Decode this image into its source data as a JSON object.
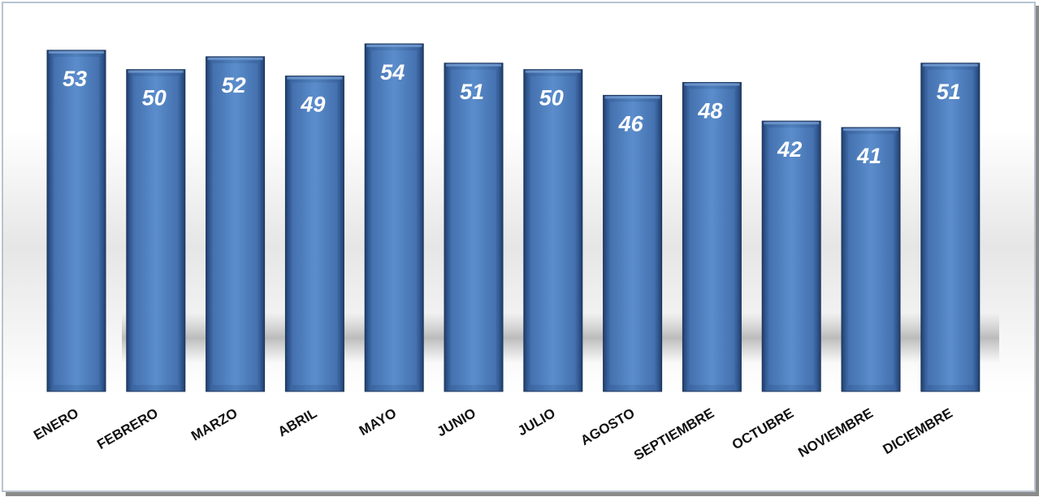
{
  "chart_data": {
    "type": "bar",
    "categories": [
      "ENERO",
      "FEBRERO",
      "MARZO",
      "ABRIL",
      "MAYO",
      "JUNIO",
      "JULIO",
      "AGOSTO",
      "SEPTIEMBRE",
      "OCTUBRE",
      "NOVIEMBRE",
      "DICIEMBRE"
    ],
    "values": [
      53,
      50,
      52,
      49,
      54,
      51,
      50,
      46,
      48,
      42,
      41,
      51
    ],
    "title": "",
    "xlabel": "",
    "ylabel": "",
    "ylim": [
      0,
      54
    ],
    "grid": false,
    "legend": "none",
    "data_labels": true,
    "colors": {
      "bar": "#4f81bd",
      "bar_dark": "#1f3f6e",
      "bar_light": "#7aa3d6",
      "label": "#ffffff",
      "frame": "#b8c3cf"
    }
  }
}
